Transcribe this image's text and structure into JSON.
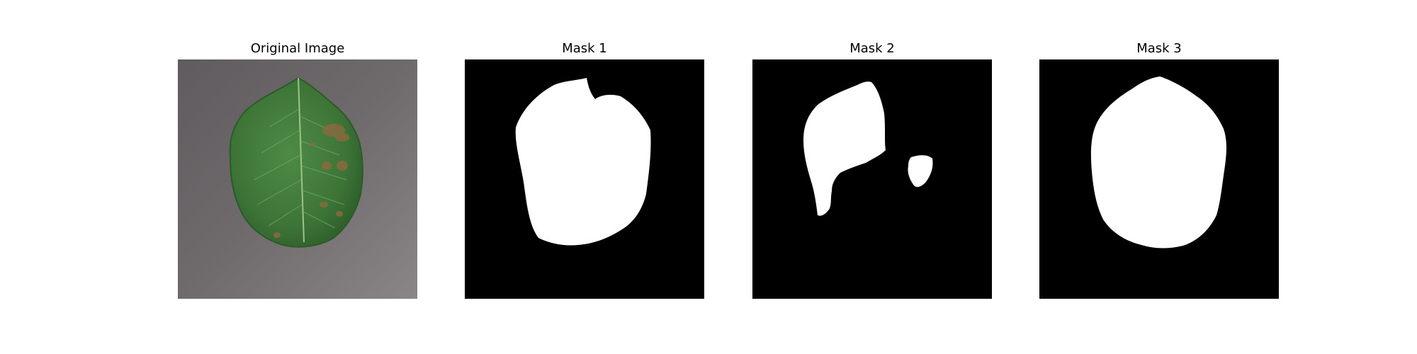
{
  "figure": {
    "panels": [
      {
        "title": "Original Image",
        "content": "photo of green apple leaf with brown spots on grey background"
      },
      {
        "title": "Mask 1",
        "content": "binary segmentation mask"
      },
      {
        "title": "Mask 2",
        "content": "binary segmentation mask"
      },
      {
        "title": "Mask 3",
        "content": "binary segmentation mask"
      }
    ]
  },
  "colors": {
    "background_photo": "#6e6a6c",
    "leaf": "#3f7a3a",
    "mask_bg": "#000000",
    "mask_fg": "#ffffff"
  }
}
